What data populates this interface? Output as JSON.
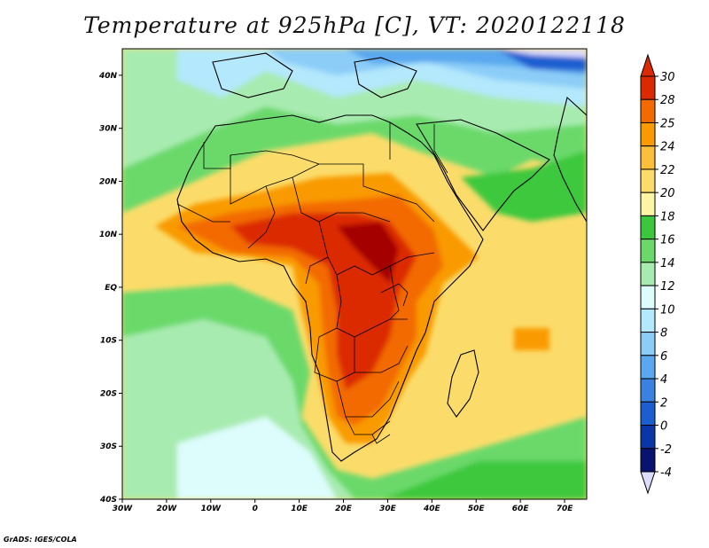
{
  "title": "Temperature at 925hPa [C], VT: 2020122118",
  "credit": "GrADS: IGES/COLA",
  "map": {
    "lon_range": [
      -30,
      75
    ],
    "lat_range": [
      -40,
      45
    ],
    "lon_ticks": [
      {
        "value": -30,
        "label": "30W"
      },
      {
        "value": -20,
        "label": "20W"
      },
      {
        "value": -10,
        "label": "10W"
      },
      {
        "value": 0,
        "label": "0"
      },
      {
        "value": 10,
        "label": "10E"
      },
      {
        "value": 20,
        "label": "20E"
      },
      {
        "value": 30,
        "label": "30E"
      },
      {
        "value": 40,
        "label": "40E"
      },
      {
        "value": 50,
        "label": "50E"
      },
      {
        "value": 60,
        "label": "60E"
      },
      {
        "value": 70,
        "label": "70E"
      }
    ],
    "lat_ticks": [
      {
        "value": 40,
        "label": "40N"
      },
      {
        "value": 30,
        "label": "30N"
      },
      {
        "value": 20,
        "label": "20N"
      },
      {
        "value": 10,
        "label": "10N"
      },
      {
        "value": 0,
        "label": "EQ"
      },
      {
        "value": -10,
        "label": "10S"
      },
      {
        "value": -20,
        "label": "20S"
      },
      {
        "value": -30,
        "label": "30S"
      },
      {
        "value": -40,
        "label": "40S"
      }
    ]
  },
  "colorbar": {
    "labels": [
      "30",
      "28",
      "25",
      "24",
      "22",
      "20",
      "18",
      "16",
      "14",
      "12",
      "10",
      "8",
      "6",
      "4",
      "2",
      "0",
      "-2",
      "-4"
    ],
    "colors": [
      "#a50000",
      "#dc2a00",
      "#f26a00",
      "#f99a00",
      "#fbbf3c",
      "#fbdc6a",
      "#fdf4a4",
      "#3cc83c",
      "#6ad96a",
      "#a8ebb0",
      "#ddfdfd",
      "#b4e8fc",
      "#8ccdf8",
      "#5aa8ef",
      "#3a82e0",
      "#1c5ed0",
      "#0a36a8",
      "#081470",
      "#dcdcfc"
    ],
    "top_color": "#dc2a00",
    "bottom_color": "#dcdcfc"
  }
}
